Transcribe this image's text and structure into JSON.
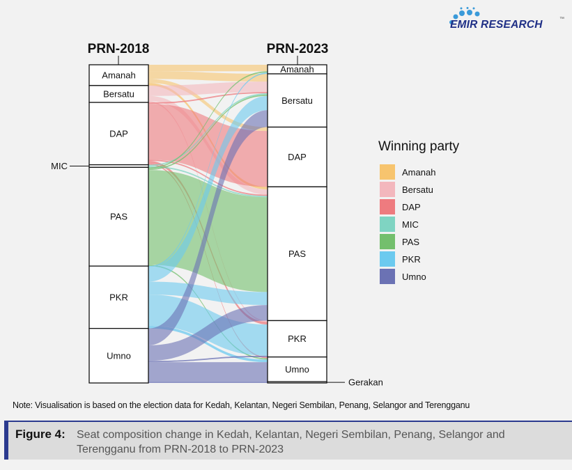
{
  "logo": {
    "text": "EMIR RESEARCH",
    "tm": "™"
  },
  "chart_data": {
    "type": "sankey",
    "axes": [
      "PRN-2018",
      "PRN-2023"
    ],
    "left_nodes": [
      "Amanah",
      "Bersatu",
      "DAP",
      "MIC",
      "PAS",
      "PKR",
      "Umno"
    ],
    "right_nodes": [
      "Amanah",
      "Bersatu",
      "DAP",
      "PAS",
      "PKR",
      "Umno",
      "Gerakan"
    ],
    "flows": [
      {
        "from": "Amanah",
        "to": "Amanah",
        "value": 5
      },
      {
        "from": "Amanah",
        "to": "Bersatu",
        "value": 6
      },
      {
        "from": "Amanah",
        "to": "DAP",
        "value": 3
      },
      {
        "from": "Amanah",
        "to": "PAS",
        "value": 2
      },
      {
        "from": "Bersatu",
        "to": "Bersatu",
        "value": 8
      },
      {
        "from": "Bersatu",
        "to": "PAS",
        "value": 4
      },
      {
        "from": "Bersatu",
        "to": "PKR",
        "value": 1
      },
      {
        "from": "DAP",
        "to": "Bersatu",
        "value": 1
      },
      {
        "from": "DAP",
        "to": "DAP",
        "value": 43
      },
      {
        "from": "DAP",
        "to": "PAS",
        "value": 1
      },
      {
        "from": "DAP",
        "to": "PKR",
        "value": 2
      },
      {
        "from": "DAP",
        "to": "Umno",
        "value": 1
      },
      {
        "from": "MIC",
        "to": "Bersatu",
        "value": 1
      },
      {
        "from": "MIC",
        "to": "PAS",
        "value": 1
      },
      {
        "from": "PAS",
        "to": "Amanah",
        "value": 1
      },
      {
        "from": "PAS",
        "to": "Bersatu",
        "value": 1
      },
      {
        "from": "PAS",
        "to": "PAS",
        "value": 73
      },
      {
        "from": "PAS",
        "to": "Umno",
        "value": 1
      },
      {
        "from": "PKR",
        "to": "Amanah",
        "value": 1
      },
      {
        "from": "PKR",
        "to": "Bersatu",
        "value": 11
      },
      {
        "from": "PKR",
        "to": "PAS",
        "value": 10
      },
      {
        "from": "PKR",
        "to": "PKR",
        "value": 24
      },
      {
        "from": "PKR",
        "to": "Umno",
        "value": 2
      },
      {
        "from": "Umno",
        "to": "Bersatu",
        "value": 13
      },
      {
        "from": "Umno",
        "to": "PAS",
        "value": 12
      },
      {
        "from": "Umno",
        "to": "PKR",
        "value": 1
      },
      {
        "from": "Umno",
        "to": "Umno",
        "value": 15
      },
      {
        "from": "Umno",
        "to": "Gerakan",
        "value": 1
      }
    ],
    "legend_title": "Winning party",
    "legend": [
      "Amanah",
      "Bersatu",
      "DAP",
      "MIC",
      "PAS",
      "PKR",
      "Umno"
    ],
    "colors": {
      "Amanah": "#f7c46e",
      "Bersatu": "#f3b7bd",
      "DAP": "#ee7b7f",
      "MIC": "#7fd4c2",
      "PAS": "#73bf6d",
      "PKR": "#6ccaef",
      "Umno": "#6b72b4",
      "Gerakan": "#4a78c8"
    }
  },
  "note": "Note: Visualisation is based on the election data for Kedah, Kelantan, Negeri Sembilan, Penang, Selangor and Terengganu",
  "caption": {
    "label": "Figure 4:",
    "text": "Seat composition change in Kedah, Kelantan, Negeri Sembilan, Penang, Selangor and Terengganu from PRN-2018 to PRN-2023"
  }
}
